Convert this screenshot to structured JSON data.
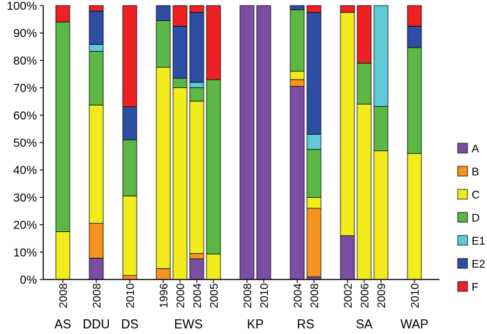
{
  "chart_data": {
    "type": "bar",
    "stacked": true,
    "ylim": [
      0,
      100
    ],
    "yticks": [
      "0%",
      "10%",
      "20%",
      "30%",
      "40%",
      "50%",
      "60%",
      "70%",
      "80%",
      "90%",
      "100%"
    ],
    "legend_position": "right",
    "series": [
      {
        "name": "A",
        "color": "#7a4fa3"
      },
      {
        "name": "B",
        "color": "#f7941d"
      },
      {
        "name": "C",
        "color": "#f2ec1c"
      },
      {
        "name": "D",
        "color": "#5bb746"
      },
      {
        "name": "E1",
        "color": "#5ecbd9"
      },
      {
        "name": "E2",
        "color": "#2d4ea3"
      },
      {
        "name": "F",
        "color": "#ee2124"
      }
    ],
    "legend_order": [
      "A",
      "B",
      "C",
      "D",
      "E1",
      "E2",
      "F"
    ],
    "groups": [
      {
        "label": "AS",
        "bars": [
          {
            "year": "2008",
            "values": {
              "A": 0,
              "B": 0,
              "C": 17.5,
              "D": 76.5,
              "E1": 0,
              "E2": 0,
              "F": 6
            }
          }
        ]
      },
      {
        "label": "DDU",
        "bars": [
          {
            "year": "2008",
            "values": {
              "A": 7.8,
              "B": 12.7,
              "C": 43.2,
              "D": 19.6,
              "E1": 2.5,
              "E2": 12.2,
              "F": 2
            }
          }
        ]
      },
      {
        "label": "DS",
        "bars": [
          {
            "year": "2010",
            "values": {
              "A": 0,
              "B": 1.5,
              "C": 29,
              "D": 20.5,
              "E1": 0,
              "E2": 12.1,
              "F": 36.9
            }
          }
        ]
      },
      {
        "label": "EWS",
        "bars": [
          {
            "year": "1996",
            "values": {
              "A": 0,
              "B": 4,
              "C": 73.5,
              "D": 17,
              "E1": 0,
              "E2": 5.5,
              "F": 0
            }
          },
          {
            "year": "2000",
            "values": {
              "A": 0,
              "B": 0,
              "C": 70,
              "D": 3.5,
              "E1": 0,
              "E2": 19,
              "F": 7.5
            }
          },
          {
            "year": "2004",
            "values": {
              "A": 7.5,
              "B": 2,
              "C": 55.6,
              "D": 4.9,
              "E1": 2,
              "E2": 25.5,
              "F": 2.5
            }
          },
          {
            "year": "2005",
            "values": {
              "A": 0,
              "B": 0,
              "C": 9.3,
              "D": 63.7,
              "E1": 0,
              "E2": 0,
              "F": 27
            }
          }
        ]
      },
      {
        "label": "KP",
        "bars": [
          {
            "year": "2008",
            "values": {
              "A": 100,
              "B": 0,
              "C": 0,
              "D": 0,
              "E1": 0,
              "E2": 0,
              "F": 0
            }
          },
          {
            "year": "2010",
            "values": {
              "A": 100,
              "B": 0,
              "C": 0,
              "D": 0,
              "E1": 0,
              "E2": 0,
              "F": 0
            }
          }
        ]
      },
      {
        "label": "RS",
        "bars": [
          {
            "year": "2004",
            "values": {
              "A": 70.5,
              "B": 2.5,
              "C": 3,
              "D": 22.5,
              "E1": 0,
              "E2": 1.5,
              "F": 0
            }
          },
          {
            "year": "2008",
            "values": {
              "A": 1,
              "B": 25,
              "C": 4,
              "D": 17.5,
              "E1": 5.5,
              "E2": 44.5,
              "F": 2.5
            }
          }
        ]
      },
      {
        "label": "SA",
        "bars": [
          {
            "year": "2002",
            "values": {
              "A": 16,
              "B": 0,
              "C": 81.5,
              "D": 0,
              "E1": 0,
              "E2": 0,
              "F": 2.5
            }
          },
          {
            "year": "2006",
            "values": {
              "A": 0,
              "B": 0,
              "C": 64,
              "D": 15,
              "E1": 0,
              "E2": 0,
              "F": 21
            }
          },
          {
            "year": "2009",
            "values": {
              "A": 0,
              "B": 0,
              "C": 47,
              "D": 16.2,
              "E1": 36.8,
              "E2": 0,
              "F": 0
            }
          }
        ]
      },
      {
        "label": "WAP",
        "bars": [
          {
            "year": "2010",
            "values": {
              "A": 0,
              "B": 0,
              "C": 46,
              "D": 38.7,
              "E1": 0,
              "E2": 7.8,
              "F": 7.5
            }
          }
        ]
      }
    ]
  }
}
